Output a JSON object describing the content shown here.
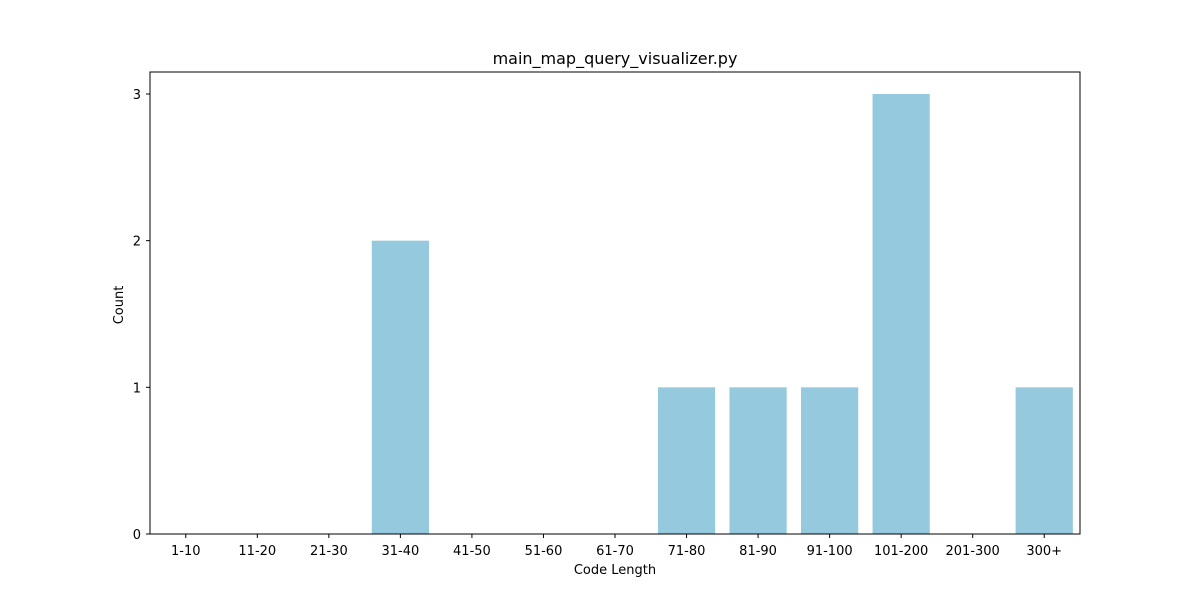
{
  "chart_data": {
    "type": "bar",
    "title": "main_map_query_visualizer.py",
    "xlabel": "Code Length",
    "ylabel": "Count",
    "categories": [
      "1-10",
      "11-20",
      "21-30",
      "31-40",
      "41-50",
      "51-60",
      "61-70",
      "71-80",
      "81-90",
      "91-100",
      "101-200",
      "201-300",
      "300+"
    ],
    "values": [
      0,
      0,
      0,
      2,
      0,
      0,
      0,
      1,
      1,
      1,
      3,
      0,
      1
    ],
    "ylim": [
      0,
      3.15
    ],
    "yticks": [
      0,
      1,
      2,
      3
    ],
    "bar_color": "#95c9de",
    "grid": false
  }
}
